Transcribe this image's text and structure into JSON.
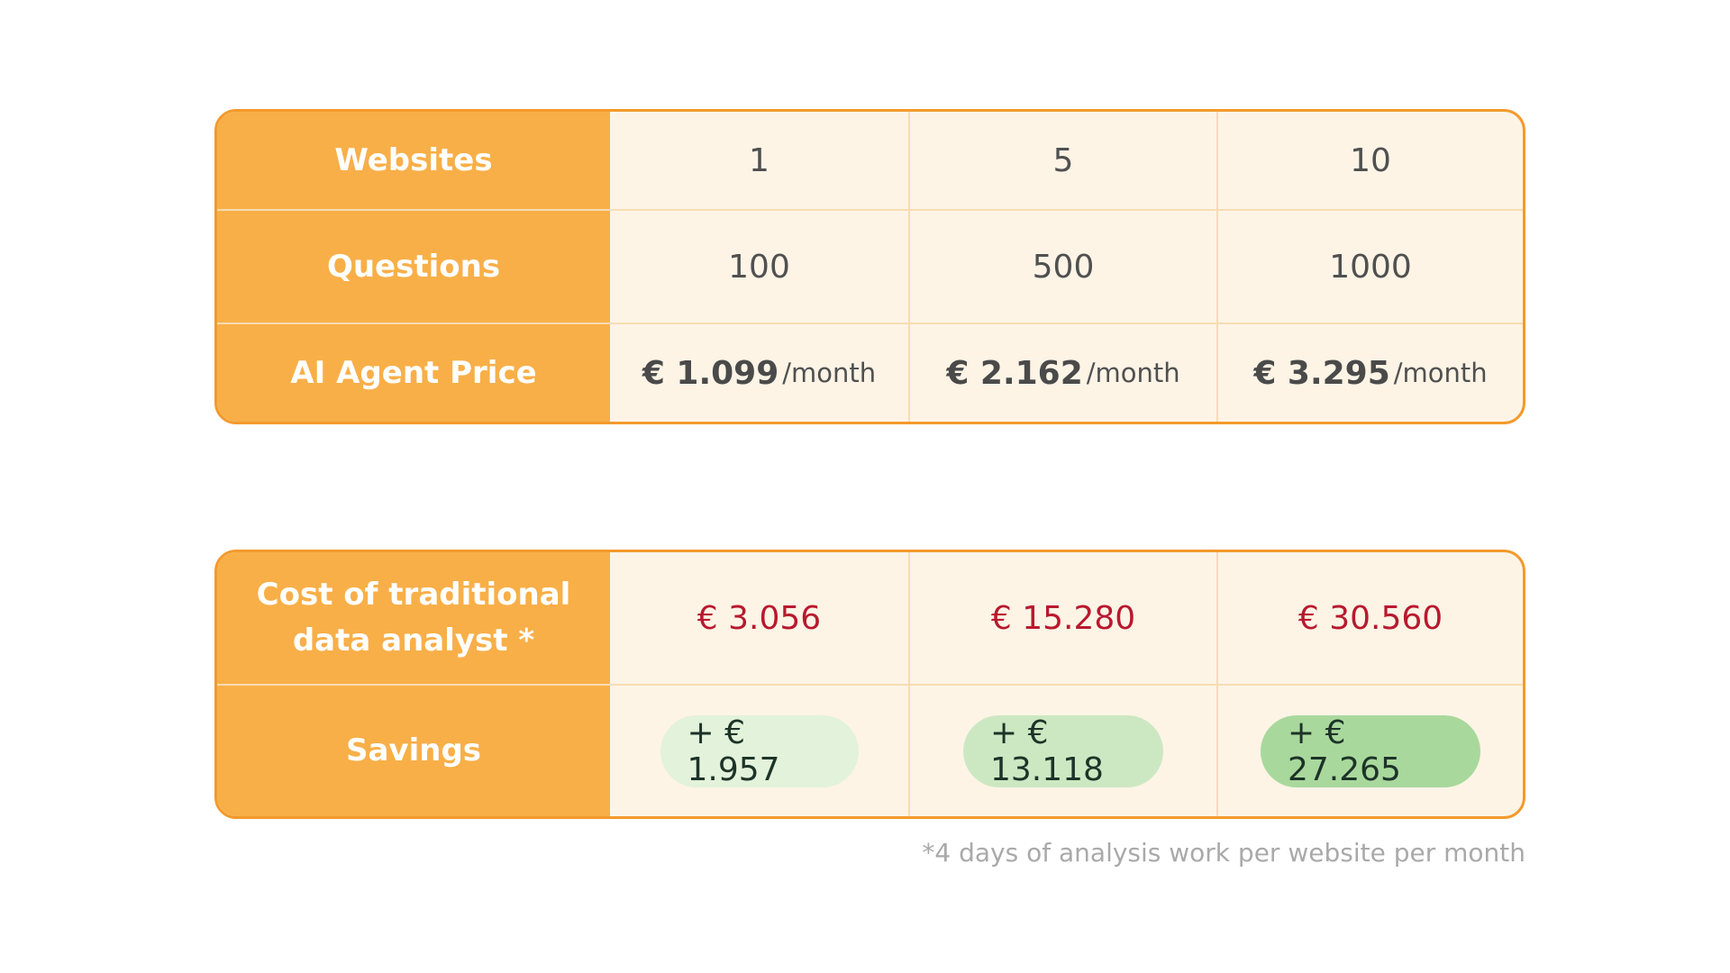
{
  "pricing_table": {
    "rows": [
      {
        "label": "Websites",
        "values": [
          "1",
          "5",
          "10"
        ]
      },
      {
        "label": "Questions",
        "values": [
          "100",
          "500",
          "1000"
        ]
      },
      {
        "label": "AI Agent Price",
        "prices": [
          {
            "amount": "€ 1.099",
            "unit": "/month"
          },
          {
            "amount": "€ 2.162",
            "unit": "/month"
          },
          {
            "amount": "€ 3.295",
            "unit": "/month"
          }
        ]
      }
    ]
  },
  "savings_table": {
    "cost_row": {
      "label_line1": "Cost of traditional",
      "label_line2": "data analyst *",
      "values": [
        "€ 3.056",
        "€ 15.280",
        "€ 30.560"
      ]
    },
    "savings_row": {
      "label": "Savings",
      "values": [
        "+ € 1.957",
        "+ € 13.118",
        "+ € 27.265"
      ]
    }
  },
  "footnote": "*4 days of analysis work per website per month",
  "colors": {
    "accent_orange": "#f8af48",
    "border_orange": "#f39a2c",
    "cell_background": "#fdf4e6",
    "cost_red": "#b8192e",
    "savings_green_light": "#e3f2da",
    "savings_green_mid": "#cce8c2",
    "savings_green_dark": "#a9d89d"
  }
}
